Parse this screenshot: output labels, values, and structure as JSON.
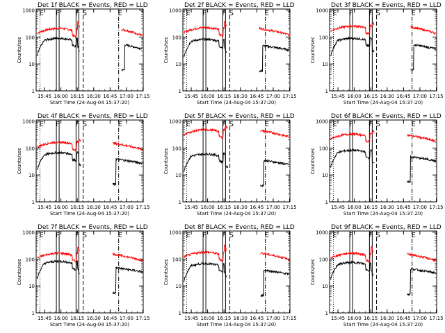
{
  "chart_data": {
    "type": "line",
    "layout": "3x3 grid of panels",
    "x_ticks": [
      "15:45",
      "16:00",
      "16:15",
      "16:30",
      "16:45",
      "17:00",
      "17:15"
    ],
    "x_axis_label": "Start Time (24-Aug-04 15:37:20)",
    "y_axis_label": "Counts/sec",
    "y_scale": "log",
    "y_ticks": [
      "1",
      "10",
      "100",
      "1000"
    ],
    "ylim": [
      1,
      1100
    ],
    "xlim_minutes_after_start": [
      0,
      98
    ],
    "series_legend": {
      "black": "Events",
      "red": "LLD"
    },
    "colors": {
      "events": "#000000",
      "lld": "#ff0000"
    },
    "markers": {
      "labels": [
        "E",
        "F",
        "F",
        "S",
        "E"
      ],
      "types": [
        "dotted",
        "solid",
        "solid",
        "dashed",
        "dashdot"
      ],
      "times_min": [
        3.5,
        18.5,
        36.5,
        43.0,
        75.5
      ]
    },
    "panels": [
      {
        "title": "Det 1f BLACK = Events, RED = LLD",
        "lld_base": 140,
        "events_base": 60,
        "gap": [
          40,
          78
        ]
      },
      {
        "title": "Det 2f BLACK = Events, RED = LLD",
        "lld_base": 150,
        "events_base": 55,
        "gap": [
          40,
          70
        ]
      },
      {
        "title": "Det 3f BLACK = Events, RED = LLD",
        "lld_base": 170,
        "events_base": 60,
        "gap": [
          41,
          74
        ]
      },
      {
        "title": "Det 4f BLACK = Events, RED = LLD",
        "lld_base": 110,
        "events_base": 45,
        "gap": [
          41,
          70
        ]
      },
      {
        "title": "Det 5f BLACK = Events, RED = LLD",
        "lld_base": 320,
        "events_base": 40,
        "gap": [
          41,
          71
        ]
      },
      {
        "title": "Det 6f BLACK = Events, RED = LLD",
        "lld_base": 220,
        "events_base": 55,
        "gap": [
          41,
          71
        ]
      },
      {
        "title": "Det 7f BLACK = Events, RED = LLD",
        "lld_base": 110,
        "events_base": 55,
        "gap": [
          40,
          70
        ]
      },
      {
        "title": "Det 8f BLACK = Events, RED = LLD",
        "lld_base": 120,
        "events_base": 45,
        "gap": [
          40,
          71
        ]
      },
      {
        "title": "Det 9f BLACK = Events, RED = LLD",
        "lld_base": 110,
        "events_base": 50,
        "gap": [
          40,
          71
        ]
      }
    ]
  }
}
